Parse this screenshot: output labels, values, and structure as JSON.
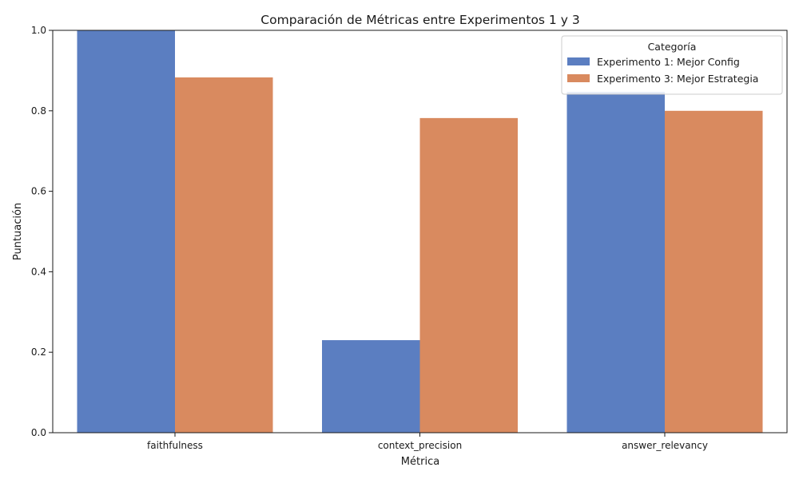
{
  "chart_data": {
    "type": "bar",
    "title": "Comparación de Métricas entre Experimentos 1 y 3",
    "xlabel": "Métrica",
    "ylabel": "Puntuación",
    "categories": [
      "faithfulness",
      "context_precision",
      "answer_relevancy"
    ],
    "series": [
      {
        "name": "Experimento 1: Mejor Config",
        "color": "#5b7ec1",
        "values": [
          1.0,
          0.23,
          0.847
        ]
      },
      {
        "name": "Experimento 3: Mejor Estrategia",
        "color": "#d98a5f",
        "values": [
          0.883,
          0.782,
          0.8
        ]
      }
    ],
    "ylim": [
      0,
      1.0
    ],
    "yticks": [
      "0.0",
      "0.2",
      "0.4",
      "0.6",
      "0.8",
      "1.0"
    ],
    "legend": {
      "title": "Categoría",
      "placement": "top-right"
    },
    "grid": false
  }
}
